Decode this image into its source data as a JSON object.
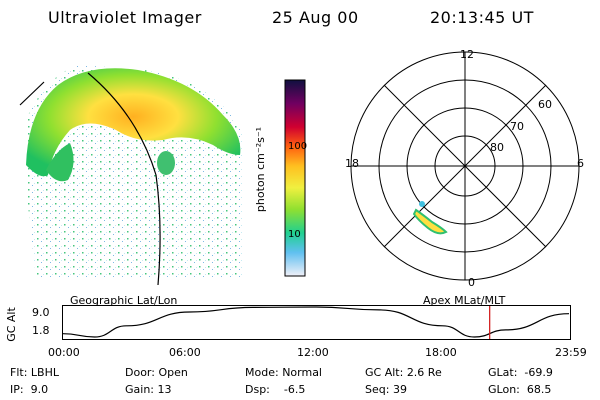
{
  "header": {
    "title": "Ultraviolet Imager",
    "date": "25 Aug 00",
    "time": "20:13:45 UT"
  },
  "colorbar": {
    "unit_label": "photon cm⁻²s⁻¹",
    "ticks": [
      "100",
      "10"
    ]
  },
  "polar": {
    "mlt_labels": {
      "top": "12",
      "left": "18",
      "right": "6",
      "bottom": "0"
    },
    "lat_labels": [
      "60",
      "70",
      "80"
    ]
  },
  "timeline": {
    "y_axis_label": "GC Alt",
    "y_ticks": [
      "9.0",
      "1.8"
    ],
    "left_caption": "Geographic Lat/Lon",
    "right_caption": "Apex MLat/MLT",
    "x_ticks": [
      "00:00",
      "06:00",
      "12:00",
      "18:00",
      "23:59"
    ],
    "altitude_series": {
      "x_hours": [
        0,
        1.5,
        3,
        6,
        9,
        12,
        15,
        18,
        19.5,
        21,
        23.99
      ],
      "y_re": [
        2.6,
        1.8,
        4.5,
        7.8,
        8.9,
        9.0,
        8.3,
        4.5,
        1.8,
        3.5,
        7.4
      ]
    },
    "current_marker_hours": 20.23,
    "colors": {
      "curve": "#000000",
      "marker": "#d01010"
    }
  },
  "status": {
    "row1": [
      {
        "label": "Flt:",
        "value": "LBHL"
      },
      {
        "label": "Door:",
        "value": "Open"
      },
      {
        "label": "Mode:",
        "value": "Normal"
      },
      {
        "label": "GC Alt:",
        "value": "2.6 Re"
      },
      {
        "label": "GLat:",
        "value": "-69.9"
      }
    ],
    "row2": [
      {
        "label": "IP:",
        "value": "9.0"
      },
      {
        "label": "Gain:",
        "value": "13"
      },
      {
        "label": "Dsp:",
        "value": "-6.5"
      },
      {
        "label": "Seq:",
        "value": "39"
      },
      {
        "label": "GLon:",
        "value": "68.5"
      }
    ]
  }
}
